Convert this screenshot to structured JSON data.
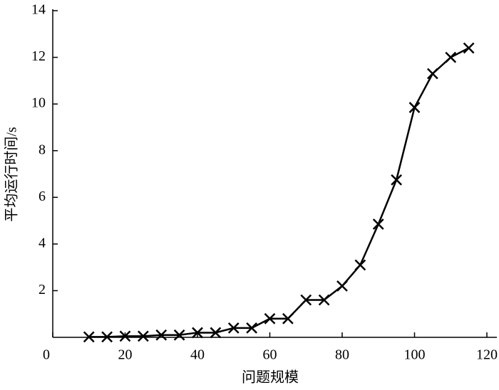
{
  "chart_data": {
    "type": "line",
    "x_label": "问题规模",
    "y_label": "平均运行时间/s",
    "x": [
      10,
      15,
      20,
      25,
      30,
      35,
      40,
      45,
      50,
      55,
      60,
      65,
      70,
      75,
      80,
      85,
      90,
      95,
      100,
      105,
      110,
      115
    ],
    "series": [
      {
        "color": "#000000",
        "marker": "x",
        "values": [
          0.02,
          0.02,
          0.05,
          0.05,
          0.1,
          0.1,
          0.2,
          0.2,
          0.4,
          0.4,
          0.8,
          0.8,
          1.6,
          1.6,
          2.2,
          3.1,
          4.85,
          6.75,
          9.85,
          11.3,
          12.0,
          12.4
        ]
      }
    ],
    "xlim": [
      0,
      120
    ],
    "xticks": [
      0,
      20,
      40,
      60,
      80,
      100,
      120
    ],
    "ylim": [
      0,
      14
    ],
    "yticks": [
      2,
      4,
      6,
      8,
      10,
      12,
      14
    ]
  }
}
